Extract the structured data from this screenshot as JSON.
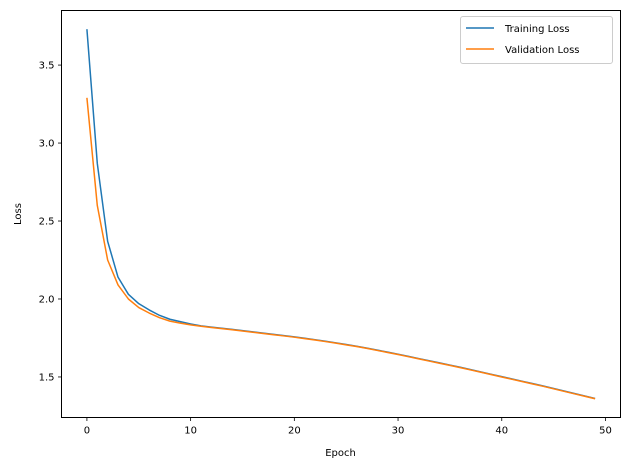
{
  "chart_data": {
    "type": "line",
    "title": "",
    "xlabel": "Epoch",
    "ylabel": "Loss",
    "xlim": [
      -2.45,
      51.45
    ],
    "ylim": [
      1.24,
      3.85
    ],
    "xticks": [
      0,
      10,
      20,
      30,
      40,
      50
    ],
    "yticks": [
      1.5,
      2.0,
      2.5,
      3.0,
      3.5
    ],
    "xtick_labels": [
      "0",
      "10",
      "20",
      "30",
      "40",
      "50"
    ],
    "ytick_labels": [
      "1.5",
      "2.0",
      "2.5",
      "3.0",
      "3.5"
    ],
    "grid": false,
    "legend_position": "upper right",
    "x": [
      0,
      1,
      2,
      3,
      4,
      5,
      6,
      7,
      8,
      9,
      10,
      11,
      12,
      13,
      14,
      15,
      16,
      17,
      18,
      19,
      20,
      21,
      22,
      23,
      24,
      25,
      26,
      27,
      28,
      29,
      30,
      31,
      32,
      33,
      34,
      35,
      36,
      37,
      38,
      39,
      40,
      41,
      42,
      43,
      44,
      45,
      46,
      47,
      48,
      49
    ],
    "series": [
      {
        "name": "Training Loss",
        "color": "#1f77b4",
        "values": [
          3.73,
          2.87,
          2.37,
          2.14,
          2.03,
          1.97,
          1.93,
          1.895,
          1.87,
          1.855,
          1.84,
          1.828,
          1.82,
          1.812,
          1.805,
          1.797,
          1.789,
          1.781,
          1.773,
          1.765,
          1.757,
          1.748,
          1.739,
          1.729,
          1.719,
          1.708,
          1.697,
          1.685,
          1.672,
          1.659,
          1.646,
          1.632,
          1.618,
          1.604,
          1.59,
          1.576,
          1.562,
          1.547,
          1.532,
          1.517,
          1.502,
          1.487,
          1.472,
          1.457,
          1.442,
          1.426,
          1.41,
          1.394,
          1.378,
          1.362
        ]
      },
      {
        "name": "Validation Loss",
        "color": "#ff7f0e",
        "values": [
          3.29,
          2.6,
          2.25,
          2.09,
          2.0,
          1.945,
          1.91,
          1.88,
          1.858,
          1.845,
          1.834,
          1.825,
          1.817,
          1.81,
          1.803,
          1.795,
          1.787,
          1.779,
          1.771,
          1.763,
          1.755,
          1.746,
          1.737,
          1.727,
          1.717,
          1.706,
          1.695,
          1.683,
          1.67,
          1.657,
          1.644,
          1.63,
          1.616,
          1.602,
          1.588,
          1.574,
          1.56,
          1.545,
          1.53,
          1.515,
          1.5,
          1.485,
          1.47,
          1.455,
          1.44,
          1.424,
          1.408,
          1.392,
          1.376,
          1.36
        ]
      }
    ]
  },
  "legend": {
    "items": [
      {
        "label": "Training Loss",
        "color": "#1f77b4"
      },
      {
        "label": "Validation Loss",
        "color": "#ff7f0e"
      }
    ]
  }
}
